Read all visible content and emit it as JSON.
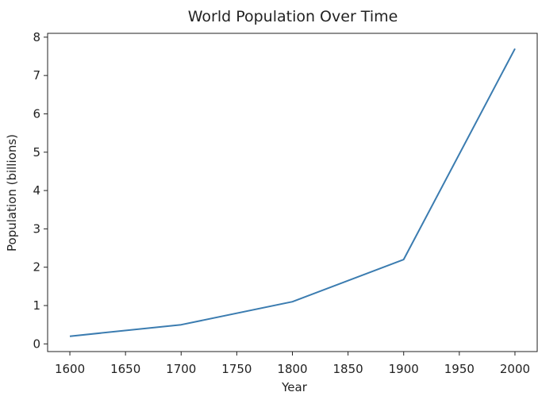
{
  "chart_data": {
    "type": "line",
    "title": "World Population Over Time",
    "xlabel": "Year",
    "ylabel": "Population (billions)",
    "xlim": [
      1580,
      2020
    ],
    "ylim": [
      -0.2,
      8.1
    ],
    "x_ticks": [
      1600,
      1650,
      1700,
      1750,
      1800,
      1850,
      1900,
      1950,
      2000
    ],
    "y_ticks": [
      0,
      1,
      2,
      3,
      4,
      5,
      6,
      7,
      8
    ],
    "grid": false,
    "series": [
      {
        "x": [
          1600,
          1700,
          1800,
          1900,
          2000
        ],
        "values": [
          0.2,
          0.5,
          1.1,
          2.2,
          7.7
        ],
        "color": "#3b7cb0"
      }
    ]
  }
}
